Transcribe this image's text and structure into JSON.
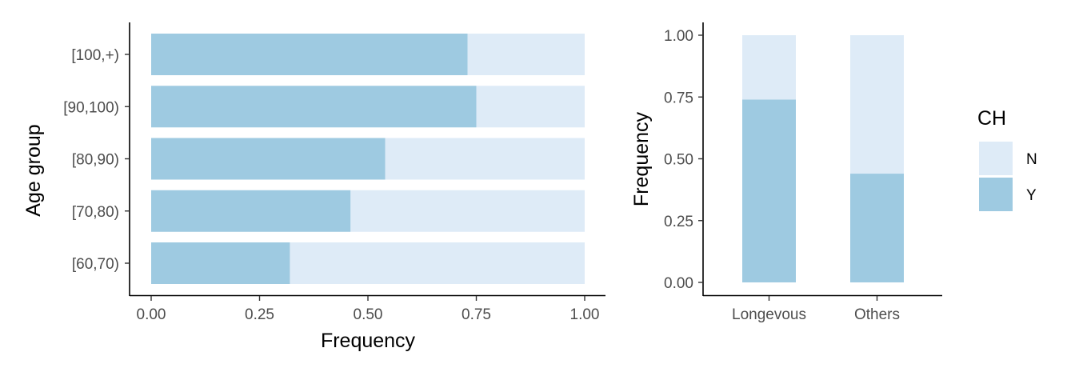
{
  "colors": {
    "N": "#deebf7",
    "Y": "#9ecae1"
  },
  "chart_data": [
    {
      "type": "bar",
      "orientation": "horizontal",
      "stacked": true,
      "categories": [
        "[100,+)",
        "[90,100)",
        "[80,90)",
        "[70,80)",
        "[60,70)"
      ],
      "series": [
        {
          "name": "Y",
          "values": [
            0.73,
            0.75,
            0.54,
            0.46,
            0.32
          ]
        },
        {
          "name": "N",
          "values": [
            0.27,
            0.25,
            0.46,
            0.54,
            0.68
          ]
        }
      ],
      "xlabel": "Frequency",
      "ylabel": "Age group",
      "xlim": [
        0,
        1
      ],
      "xticks": [
        "0.00",
        "0.25",
        "0.50",
        "0.75",
        "1.00"
      ],
      "grid": false
    },
    {
      "type": "bar",
      "orientation": "vertical",
      "stacked": true,
      "categories": [
        "Longevous",
        "Others"
      ],
      "series": [
        {
          "name": "Y",
          "values": [
            0.74,
            0.44
          ]
        },
        {
          "name": "N",
          "values": [
            0.26,
            0.56
          ]
        }
      ],
      "xlabel": "",
      "ylabel": "Frequency",
      "ylim": [
        0,
        1
      ],
      "yticks": [
        "0.00",
        "0.25",
        "0.50",
        "0.75",
        "1.00"
      ],
      "grid": false
    }
  ],
  "legend": {
    "title": "CH",
    "position": "right",
    "items": [
      {
        "label": "N",
        "color": "#deebf7"
      },
      {
        "label": "Y",
        "color": "#9ecae1"
      }
    ]
  }
}
